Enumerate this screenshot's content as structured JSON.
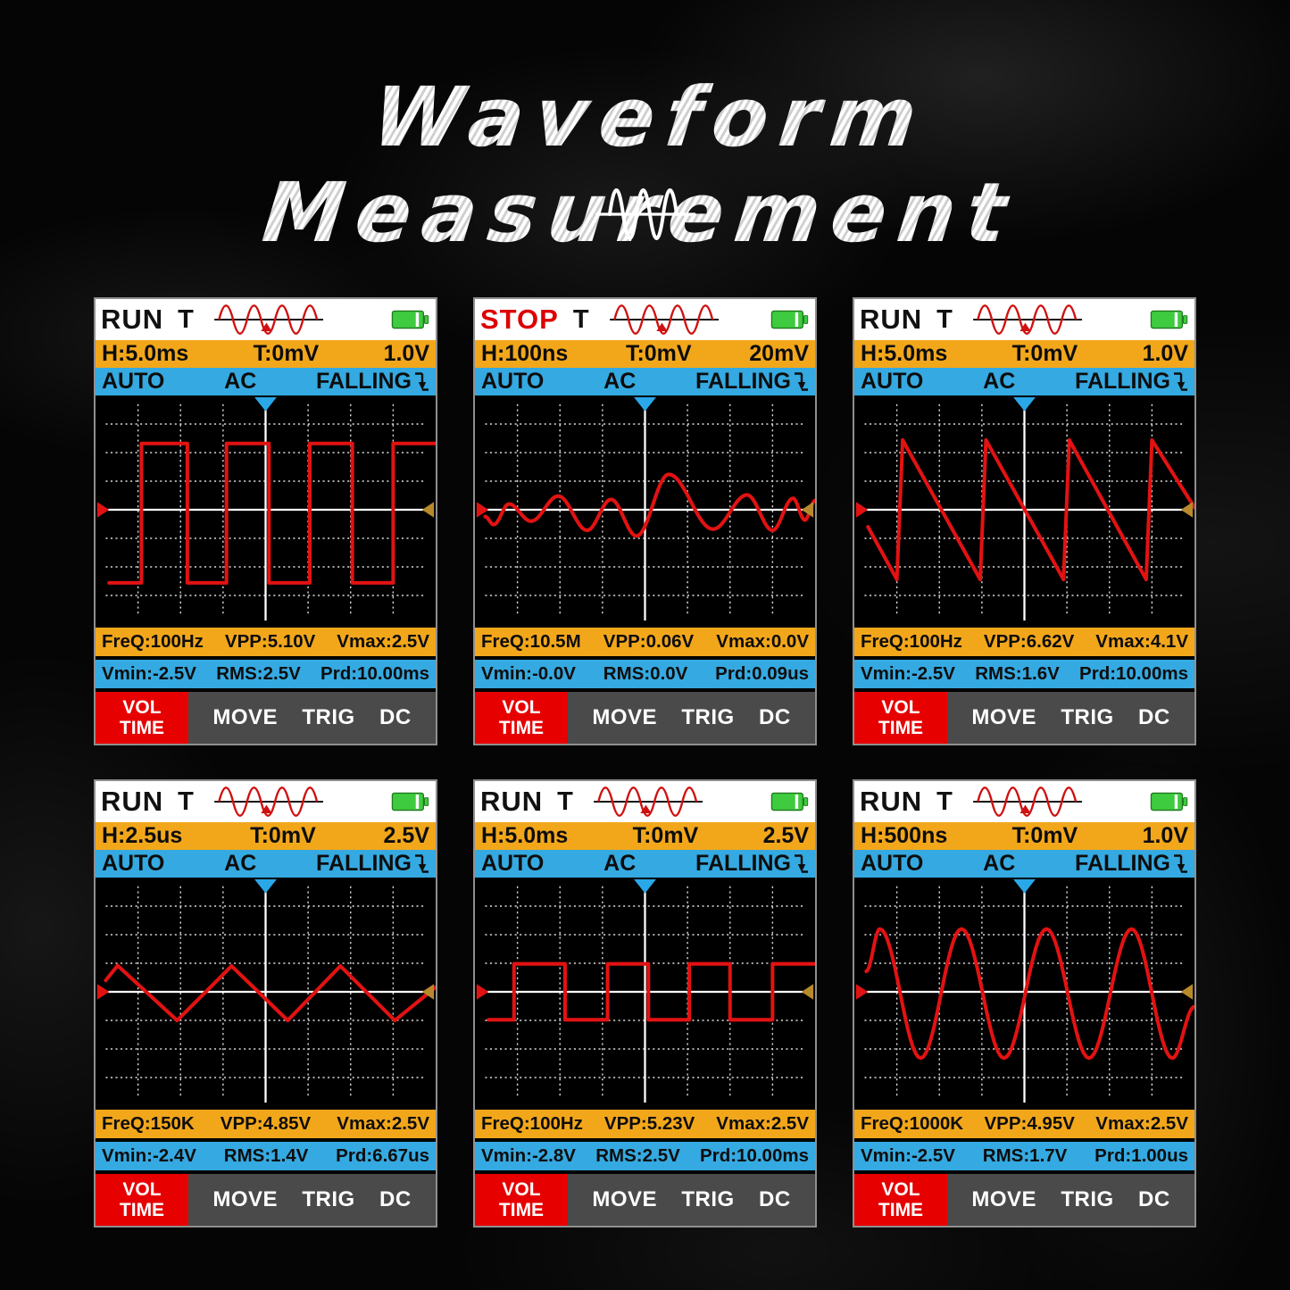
{
  "page": {
    "title": "Waveform Measurement"
  },
  "colors": {
    "accent_orange": "#F2A71B",
    "accent_blue": "#35A9E1",
    "wave_red": "#E31212",
    "stop_red": "#DD0000",
    "run_black": "#111111",
    "battery_green": "#3FCB3F",
    "softkey_red": "#E60000",
    "softbar_gray": "#4A4A4A",
    "grid_white": "#D8D8D8",
    "right_marker_olive": "#B98A2C",
    "top_marker_blue": "#2AA7E8"
  },
  "icons": {
    "logo": "sine-wave-icon",
    "header_wave": "trigger-waveform-icon",
    "battery": "battery-icon",
    "edge": "falling-edge-icon",
    "top_marker": "trigger-position-marker",
    "left_marker": "channel-level-marker",
    "right_marker": "trigger-level-marker"
  },
  "panels": [
    {
      "status": "RUN",
      "status_color": "#111111",
      "trigger_label": "T",
      "hdiv": "H:5.0ms",
      "trig_level": "T:0mV",
      "vdiv": "1.0V",
      "mode": "AUTO",
      "coupling": "AC",
      "edge": "FALLING",
      "freq": "FreQ:100Hz",
      "vpp": "VPP:5.10V",
      "vmax": "Vmax:2.5V",
      "vmin": "Vmin:-2.5V",
      "rms": "RMS:2.5V",
      "prd": "Prd:10.00ms",
      "softkeys": {
        "vol": "VOL",
        "time": "TIME",
        "move": "MOVE",
        "trig": "TRIG",
        "dc": "DC"
      },
      "wave": {
        "shape": "square",
        "interp": "linear",
        "points": [
          [
            0.04,
            0.82
          ],
          [
            0.135,
            0.82
          ],
          [
            0.135,
            0.21
          ],
          [
            0.27,
            0.21
          ],
          [
            0.27,
            0.82
          ],
          [
            0.385,
            0.82
          ],
          [
            0.385,
            0.21
          ],
          [
            0.51,
            0.21
          ],
          [
            0.51,
            0.82
          ],
          [
            0.63,
            0.82
          ],
          [
            0.63,
            0.21
          ],
          [
            0.755,
            0.21
          ],
          [
            0.755,
            0.82
          ],
          [
            0.875,
            0.82
          ],
          [
            0.875,
            0.21
          ],
          [
            1.0,
            0.21
          ]
        ]
      }
    },
    {
      "status": "STOP",
      "status_color": "#DD0000",
      "trigger_label": "T",
      "hdiv": "H:100ns",
      "trig_level": "T:0mV",
      "vdiv": "20mV",
      "mode": "AUTO",
      "coupling": "AC",
      "edge": "FALLING",
      "freq": "FreQ:10.5M",
      "vpp": "VPP:0.06V",
      "vmax": "Vmax:0.0V",
      "vmin": "Vmin:-0.0V",
      "rms": "RMS:0.0V",
      "prd": "Prd:0.09us",
      "softkeys": {
        "vol": "VOL",
        "time": "TIME",
        "move": "MOVE",
        "trig": "TRIG",
        "dc": "DC"
      },
      "wave": {
        "shape": "modulated-sine",
        "interp": "cosine",
        "points": [
          [
            0.03,
            0.53
          ],
          [
            0.055,
            0.565
          ],
          [
            0.1,
            0.475
          ],
          [
            0.165,
            0.55
          ],
          [
            0.245,
            0.44
          ],
          [
            0.33,
            0.59
          ],
          [
            0.4,
            0.455
          ],
          [
            0.475,
            0.615
          ],
          [
            0.57,
            0.345
          ],
          [
            0.7,
            0.585
          ],
          [
            0.8,
            0.435
          ],
          [
            0.875,
            0.59
          ],
          [
            0.935,
            0.45
          ],
          [
            0.97,
            0.545
          ],
          [
            1.0,
            0.46
          ]
        ]
      }
    },
    {
      "status": "RUN",
      "status_color": "#111111",
      "trigger_label": "T",
      "hdiv": "H:5.0ms",
      "trig_level": "T:0mV",
      "vdiv": "1.0V",
      "mode": "AUTO",
      "coupling": "AC",
      "edge": "FALLING",
      "freq": "FreQ:100Hz",
      "vpp": "VPP:6.62V",
      "vmax": "Vmax:4.1V",
      "vmin": "Vmin:-2.5V",
      "rms": "RMS:1.6V",
      "prd": "Prd:10.00ms",
      "softkeys": {
        "vol": "VOL",
        "time": "TIME",
        "move": "MOVE",
        "trig": "TRIG",
        "dc": "DC"
      },
      "wave": {
        "shape": "sawtooth",
        "interp": "linear",
        "points": [
          [
            0.04,
            0.575
          ],
          [
            0.125,
            0.805
          ],
          [
            0.142,
            0.195
          ],
          [
            0.37,
            0.805
          ],
          [
            0.387,
            0.195
          ],
          [
            0.615,
            0.805
          ],
          [
            0.632,
            0.195
          ],
          [
            0.858,
            0.805
          ],
          [
            0.875,
            0.195
          ],
          [
            1.0,
            0.49
          ]
        ]
      }
    },
    {
      "status": "RUN",
      "status_color": "#111111",
      "trigger_label": "T",
      "hdiv": "H:2.5us",
      "trig_level": "T:0mV",
      "vdiv": "2.5V",
      "mode": "AUTO",
      "coupling": "AC",
      "edge": "FALLING",
      "freq": "FreQ:150K",
      "vpp": "VPP:4.85V",
      "vmax": "Vmax:2.5V",
      "vmin": "Vmin:-2.4V",
      "rms": "RMS:1.4V",
      "prd": "Prd:6.67us",
      "softkeys": {
        "vol": "VOL",
        "time": "TIME",
        "move": "MOVE",
        "trig": "TRIG",
        "dc": "DC"
      },
      "wave": {
        "shape": "triangle",
        "interp": "linear",
        "points": [
          [
            0.03,
            0.45
          ],
          [
            0.065,
            0.385
          ],
          [
            0.24,
            0.625
          ],
          [
            0.4,
            0.387
          ],
          [
            0.565,
            0.625
          ],
          [
            0.72,
            0.387
          ],
          [
            0.88,
            0.625
          ],
          [
            1.0,
            0.48
          ]
        ]
      }
    },
    {
      "status": "RUN",
      "status_color": "#111111",
      "trigger_label": "T",
      "hdiv": "H:5.0ms",
      "trig_level": "T:0mV",
      "vdiv": "2.5V",
      "mode": "AUTO",
      "coupling": "AC",
      "edge": "FALLING",
      "freq": "FreQ:100Hz",
      "vpp": "VPP:5.23V",
      "vmax": "Vmax:2.5V",
      "vmin": "Vmin:-2.8V",
      "rms": "RMS:2.5V",
      "prd": "Prd:10.00ms",
      "softkeys": {
        "vol": "VOL",
        "time": "TIME",
        "move": "MOVE",
        "trig": "TRIG",
        "dc": "DC"
      },
      "wave": {
        "shape": "pulse",
        "interp": "linear",
        "points": [
          [
            0.04,
            0.622
          ],
          [
            0.115,
            0.622
          ],
          [
            0.115,
            0.378
          ],
          [
            0.265,
            0.378
          ],
          [
            0.265,
            0.622
          ],
          [
            0.39,
            0.622
          ],
          [
            0.39,
            0.378
          ],
          [
            0.51,
            0.378
          ],
          [
            0.51,
            0.622
          ],
          [
            0.63,
            0.622
          ],
          [
            0.63,
            0.378
          ],
          [
            0.75,
            0.378
          ],
          [
            0.75,
            0.622
          ],
          [
            0.875,
            0.622
          ],
          [
            0.875,
            0.378
          ],
          [
            1.0,
            0.378
          ]
        ]
      }
    },
    {
      "status": "RUN",
      "status_color": "#111111",
      "trigger_label": "T",
      "hdiv": "H:500ns",
      "trig_level": "T:0mV",
      "vdiv": "1.0V",
      "mode": "AUTO",
      "coupling": "AC",
      "edge": "FALLING",
      "freq": "FreQ:1000K",
      "vpp": "VPP:4.95V",
      "vmax": "Vmax:2.5V",
      "vmin": "Vmin:-2.5V",
      "rms": "RMS:1.7V",
      "prd": "Prd:1.00us",
      "softkeys": {
        "vol": "VOL",
        "time": "TIME",
        "move": "MOVE",
        "trig": "TRIG",
        "dc": "DC"
      },
      "wave": {
        "shape": "sine",
        "interp": "cosine",
        "points": [
          [
            0.035,
            0.41
          ],
          [
            0.075,
            0.225
          ],
          [
            0.195,
            0.79
          ],
          [
            0.315,
            0.225
          ],
          [
            0.44,
            0.79
          ],
          [
            0.565,
            0.225
          ],
          [
            0.69,
            0.79
          ],
          [
            0.815,
            0.225
          ],
          [
            0.935,
            0.79
          ],
          [
            1.0,
            0.565
          ]
        ]
      }
    }
  ]
}
